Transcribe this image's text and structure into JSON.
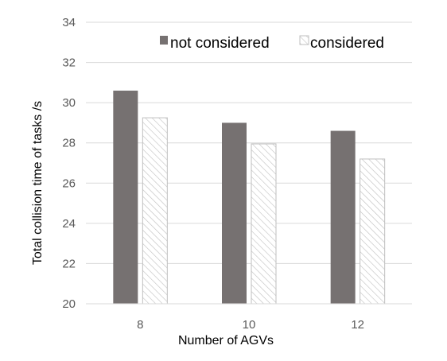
{
  "chart_data": {
    "type": "bar",
    "title": "",
    "xlabel": "Number of AGVs",
    "ylabel": "Total collision time of tasks /s",
    "categories": [
      "8",
      "10",
      "12"
    ],
    "series": [
      {
        "name": "not considered",
        "values": [
          30.6,
          29.0,
          28.6
        ],
        "color": "#767171",
        "pattern": "solid"
      },
      {
        "name": "considered",
        "values": [
          29.25,
          27.95,
          27.2
        ],
        "color": "#bfbfbf",
        "pattern": "diagonal-hatch"
      }
    ],
    "ylim": [
      20,
      34
    ],
    "yticks": [
      20,
      22,
      24,
      26,
      28,
      30,
      32,
      34
    ],
    "grid": true,
    "legend_position": "top-right"
  }
}
